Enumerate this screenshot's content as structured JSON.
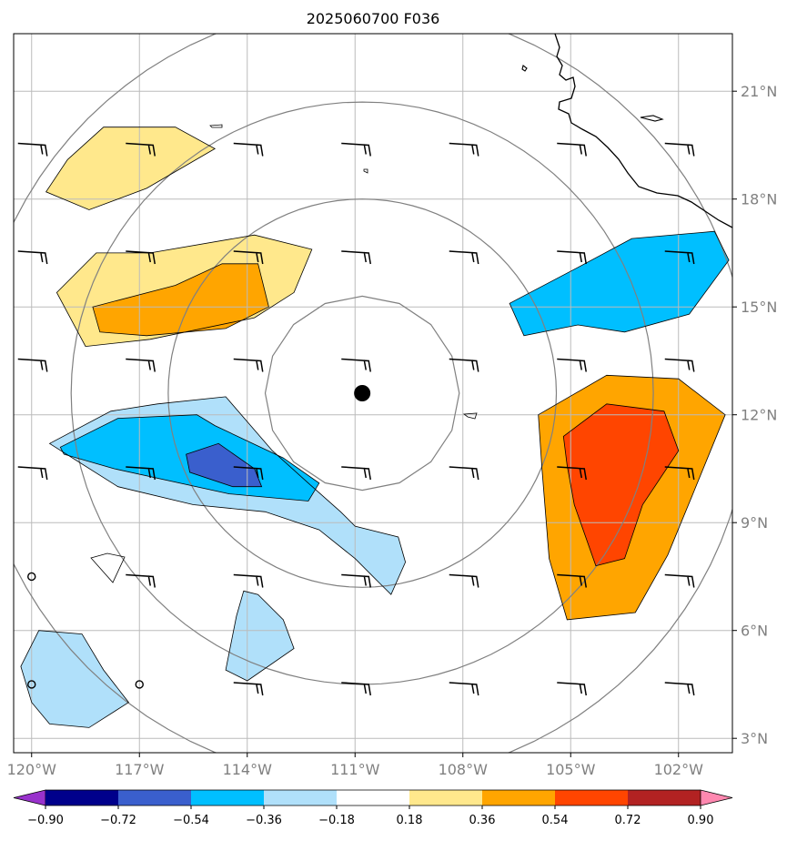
{
  "chart_data": {
    "type": "heatmap",
    "title": "2025060700 F036",
    "xlabel": "",
    "ylabel": "",
    "xlim": [
      -120.5,
      -100.5
    ],
    "ylim": [
      2.6,
      22.6
    ],
    "x_ticks": [
      -120,
      -117,
      -114,
      -111,
      -108,
      -105,
      -102
    ],
    "x_tick_labels": [
      "120°W",
      "117°W",
      "114°W",
      "111°W",
      "108°W",
      "105°W",
      "102°W"
    ],
    "y_ticks": [
      3,
      6,
      9,
      12,
      15,
      18,
      21
    ],
    "y_tick_labels": [
      "3°N",
      "6°N",
      "9°N",
      "12°N",
      "15°N",
      "18°N",
      "21°N"
    ],
    "grid": true,
    "colorbar": {
      "levels": [
        -0.9,
        -0.72,
        -0.54,
        -0.36,
        -0.18,
        0.18,
        0.36,
        0.54,
        0.72,
        0.9
      ],
      "labels": [
        "−0.90",
        "−0.72",
        "−0.54",
        "−0.36",
        "−0.18",
        "0.18",
        "0.36",
        "0.54",
        "0.72",
        "0.90"
      ],
      "colors": [
        "#9932cc",
        "#00008b",
        "#3a5fcd",
        "#00bfff",
        "#b0e0fa",
        "#ffffff",
        "#ffe88c",
        "#ffa500",
        "#ff4500",
        "#b22222",
        "#ff88b0"
      ],
      "extend": "both"
    },
    "center_marker": {
      "lon": -110.8,
      "lat": 12.6
    },
    "range_ring_radii_deg": [
      2.7,
      5.4,
      8.1,
      10.8
    ],
    "contours": [
      {
        "name": "negative-south-band",
        "value": -0.48,
        "points": [
          [
            -119.2,
            11.1
          ],
          [
            -117.6,
            11.9
          ],
          [
            -115.4,
            12.0
          ],
          [
            -114.9,
            11.7
          ],
          [
            -113.0,
            10.8
          ],
          [
            -112.0,
            10.1
          ],
          [
            -112.3,
            9.6
          ],
          [
            -114.5,
            9.8
          ],
          [
            -117.7,
            10.5
          ],
          [
            -119.1,
            10.9
          ]
        ]
      },
      {
        "name": "negative-south-core",
        "value": -0.7,
        "points": [
          [
            -115.7,
            10.9
          ],
          [
            -114.8,
            11.2
          ],
          [
            -113.8,
            10.5
          ],
          [
            -113.6,
            10.0
          ],
          [
            -114.4,
            10.0
          ],
          [
            -115.6,
            10.4
          ]
        ]
      },
      {
        "name": "negative-south-edge",
        "value": -0.25,
        "points": [
          [
            -119.5,
            11.2
          ],
          [
            -117.8,
            12.1
          ],
          [
            -116.5,
            12.3
          ],
          [
            -114.6,
            12.5
          ],
          [
            -113.3,
            11.0
          ],
          [
            -112.3,
            10.1
          ],
          [
            -111.4,
            9.3
          ],
          [
            -111.0,
            8.9
          ],
          [
            -109.8,
            8.6
          ],
          [
            -109.6,
            7.9
          ],
          [
            -110.0,
            7.0
          ],
          [
            -110.3,
            7.3
          ],
          [
            -111.0,
            8.0
          ],
          [
            -112.0,
            8.8
          ],
          [
            -113.5,
            9.3
          ],
          [
            -115.5,
            9.5
          ],
          [
            -117.6,
            10.0
          ]
        ]
      },
      {
        "name": "negative-sw-blob",
        "value": -0.25,
        "points": [
          [
            -120.3,
            5.0
          ],
          [
            -120.0,
            4.0
          ],
          [
            -119.5,
            3.4
          ],
          [
            -118.4,
            3.3
          ],
          [
            -117.3,
            4.0
          ],
          [
            -118.0,
            4.9
          ],
          [
            -118.6,
            5.9
          ],
          [
            -119.8,
            6.0
          ]
        ]
      },
      {
        "name": "negative-mid-blob",
        "value": -0.25,
        "points": [
          [
            -114.1,
            7.1
          ],
          [
            -113.7,
            7.0
          ],
          [
            -113.0,
            6.3
          ],
          [
            -112.7,
            5.5
          ],
          [
            -114.0,
            4.6
          ],
          [
            -114.6,
            4.9
          ],
          [
            -114.3,
            6.4
          ]
        ]
      },
      {
        "name": "negative-ne-band",
        "value": -0.45,
        "points": [
          [
            -106.7,
            15.1
          ],
          [
            -104.8,
            16.1
          ],
          [
            -103.3,
            16.9
          ],
          [
            -101.0,
            17.1
          ],
          [
            -100.6,
            16.3
          ],
          [
            -101.7,
            14.8
          ],
          [
            -103.5,
            14.3
          ],
          [
            -104.8,
            14.5
          ],
          [
            -106.3,
            14.2
          ]
        ]
      },
      {
        "name": "positive-nw-band",
        "value": 0.35,
        "points": [
          [
            -119.3,
            15.4
          ],
          [
            -118.2,
            16.5
          ],
          [
            -116.7,
            16.5
          ],
          [
            -113.8,
            17.0
          ],
          [
            -112.2,
            16.6
          ],
          [
            -112.7,
            15.4
          ],
          [
            -113.8,
            14.7
          ],
          [
            -116.7,
            14.1
          ],
          [
            -118.5,
            13.9
          ]
        ]
      },
      {
        "name": "positive-nw-core",
        "value": 0.5,
        "points": [
          [
            -118.3,
            15.0
          ],
          [
            -116.0,
            15.6
          ],
          [
            -114.7,
            16.2
          ],
          [
            -113.7,
            16.2
          ],
          [
            -113.4,
            15.0
          ],
          [
            -114.6,
            14.4
          ],
          [
            -116.8,
            14.2
          ],
          [
            -118.1,
            14.3
          ]
        ]
      },
      {
        "name": "positive-n-blob",
        "value": 0.25,
        "points": [
          [
            -119.0,
            19.1
          ],
          [
            -118.0,
            20.0
          ],
          [
            -116.0,
            20.0
          ],
          [
            -114.9,
            19.4
          ],
          [
            -116.8,
            18.3
          ],
          [
            -118.4,
            17.7
          ],
          [
            -119.6,
            18.2
          ]
        ]
      },
      {
        "name": "positive-east-band",
        "value": 0.45,
        "points": [
          [
            -105.9,
            12.0
          ],
          [
            -104.0,
            13.1
          ],
          [
            -102.0,
            13.0
          ],
          [
            -100.7,
            12.0
          ],
          [
            -101.6,
            9.8
          ],
          [
            -102.3,
            8.1
          ],
          [
            -103.2,
            6.5
          ],
          [
            -105.1,
            6.3
          ],
          [
            -105.6,
            8.0
          ],
          [
            -105.8,
            10.5
          ]
        ]
      },
      {
        "name": "positive-east-core",
        "value": 0.6,
        "points": [
          [
            -105.2,
            11.4
          ],
          [
            -104.0,
            12.3
          ],
          [
            -102.4,
            12.1
          ],
          [
            -102.0,
            11.0
          ],
          [
            -103.0,
            9.5
          ],
          [
            -103.5,
            8.0
          ],
          [
            -104.3,
            7.8
          ],
          [
            -104.9,
            9.5
          ],
          [
            -105.1,
            10.6
          ]
        ]
      }
    ],
    "wind_barb_grid": {
      "lons": [
        -120,
        -117,
        -114,
        -111,
        -108,
        -105,
        -102
      ],
      "lats": [
        4.5,
        7.5,
        10.5,
        13.5,
        16.5,
        19.5
      ],
      "calm_points": [
        [
          -120,
          7.5
        ],
        [
          -120,
          4.5
        ],
        [
          -117,
          4.5
        ]
      ]
    }
  },
  "colors": {
    "grid": "#bbbbbb",
    "ring": "#808080",
    "coast": "#000000",
    "barb": "#000000"
  }
}
